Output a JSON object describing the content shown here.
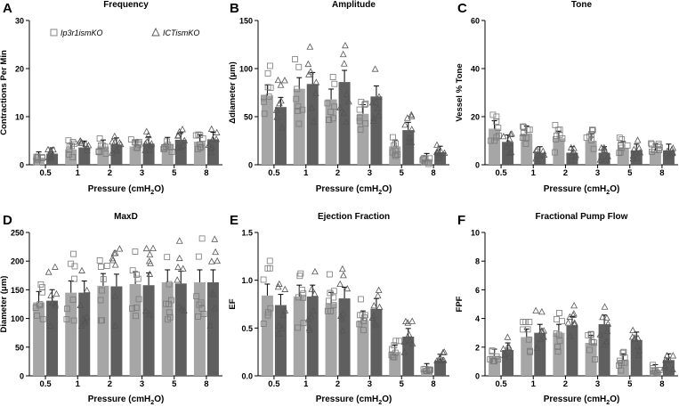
{
  "figure": {
    "legend": {
      "series1": "Ip3r1ismKO",
      "series2": "ICTismKO"
    },
    "xlabel_main": "Pressure (cmH",
    "xlabel_sub": "2",
    "xlabel_end": "O)"
  },
  "colors": {
    "series1_bar": "#a6a6a6",
    "series2_bar": "#5f5f5f",
    "axis": "#000000"
  },
  "chart_data": [
    {
      "type": "bar",
      "letter": "A",
      "title": "Frequency",
      "ylabel": "Contractions Per Min",
      "categories": [
        "0.5",
        "1",
        "2",
        "3",
        "5",
        "8"
      ],
      "ylim": [
        0,
        30
      ],
      "yticks": [
        "0",
        "10",
        "20",
        "30"
      ],
      "series": [
        {
          "name": "Ip3r1ismKO",
          "values": [
            1.5,
            3.2,
            3.8,
            3.8,
            4.3,
            4.8
          ]
        },
        {
          "name": "ICTismKO",
          "values": [
            2.3,
            3.6,
            4.2,
            4.4,
            5.2,
            5.3
          ]
        }
      ]
    },
    {
      "type": "bar",
      "letter": "B",
      "title": "Amplitude",
      "ylabel": "Δdiameter (μm)",
      "categories": [
        "0.5",
        "1",
        "2",
        "3",
        "5",
        "8"
      ],
      "ylim": [
        0,
        150
      ],
      "yticks": [
        "0",
        "50",
        "100",
        "150"
      ],
      "series": [
        {
          "name": "Ip3r1ismKO",
          "values": [
            72,
            79,
            68,
            53,
            19,
            6
          ]
        },
        {
          "name": "ICTismKO",
          "values": [
            60,
            84,
            86,
            71,
            36,
            13
          ]
        }
      ]
    },
    {
      "type": "bar",
      "letter": "C",
      "title": "Tone",
      "ylabel": "Vessel % Tone",
      "categories": [
        "0.5",
        "1",
        "2",
        "3",
        "5",
        "8"
      ],
      "ylim": [
        0,
        60
      ],
      "yticks": [
        "0",
        "20",
        "40",
        "60"
      ],
      "series": [
        {
          "name": "Ip3r1ismKO",
          "values": [
            15,
            13,
            11,
            10,
            7,
            6
          ]
        },
        {
          "name": "ICTismKO",
          "values": [
            9.5,
            5,
            5,
            5,
            6,
            6
          ]
        }
      ]
    },
    {
      "type": "bar",
      "letter": "D",
      "title": "MaxD",
      "ylabel": "Diameter (μm)",
      "categories": [
        "0.5",
        "1",
        "2",
        "3",
        "5",
        "8"
      ],
      "ylim": [
        0,
        250
      ],
      "yticks": [
        "0",
        "50",
        "100",
        "150",
        "200",
        "250"
      ],
      "series": [
        {
          "name": "Ip3r1ismKO",
          "values": [
            128,
            145,
            157,
            160,
            163,
            163
          ]
        },
        {
          "name": "ICTismKO",
          "values": [
            131,
            145,
            156,
            158,
            161,
            163
          ]
        }
      ]
    },
    {
      "type": "bar",
      "letter": "E",
      "title": "Ejection Fraction",
      "ylabel": "EF",
      "categories": [
        "0.5",
        "1",
        "2",
        "3",
        "5",
        "8"
      ],
      "ylim": [
        0,
        1.5
      ],
      "yticks": [
        "0.0",
        "0.5",
        "1.0",
        "1.5"
      ],
      "series": [
        {
          "name": "Ip3r1ismKO",
          "values": [
            0.84,
            0.83,
            0.76,
            0.58,
            0.25,
            0.07
          ]
        },
        {
          "name": "ICTismKO",
          "values": [
            0.74,
            0.83,
            0.81,
            0.7,
            0.41,
            0.16
          ]
        }
      ]
    },
    {
      "type": "bar",
      "letter": "F",
      "title": "Fractional Pump Flow",
      "ylabel": "FPF",
      "categories": [
        "0.5",
        "1",
        "2",
        "3",
        "5",
        "8"
      ],
      "ylim": [
        0,
        10
      ],
      "yticks": [
        "0",
        "2",
        "4",
        "6",
        "8",
        "10"
      ],
      "series": [
        {
          "name": "Ip3r1ismKO",
          "values": [
            1.4,
            2.7,
            3.0,
            2.3,
            1.1,
            0.4
          ]
        },
        {
          "name": "ICTismKO",
          "values": [
            1.8,
            3.0,
            3.5,
            3.6,
            2.5,
            1.1
          ]
        }
      ]
    }
  ]
}
